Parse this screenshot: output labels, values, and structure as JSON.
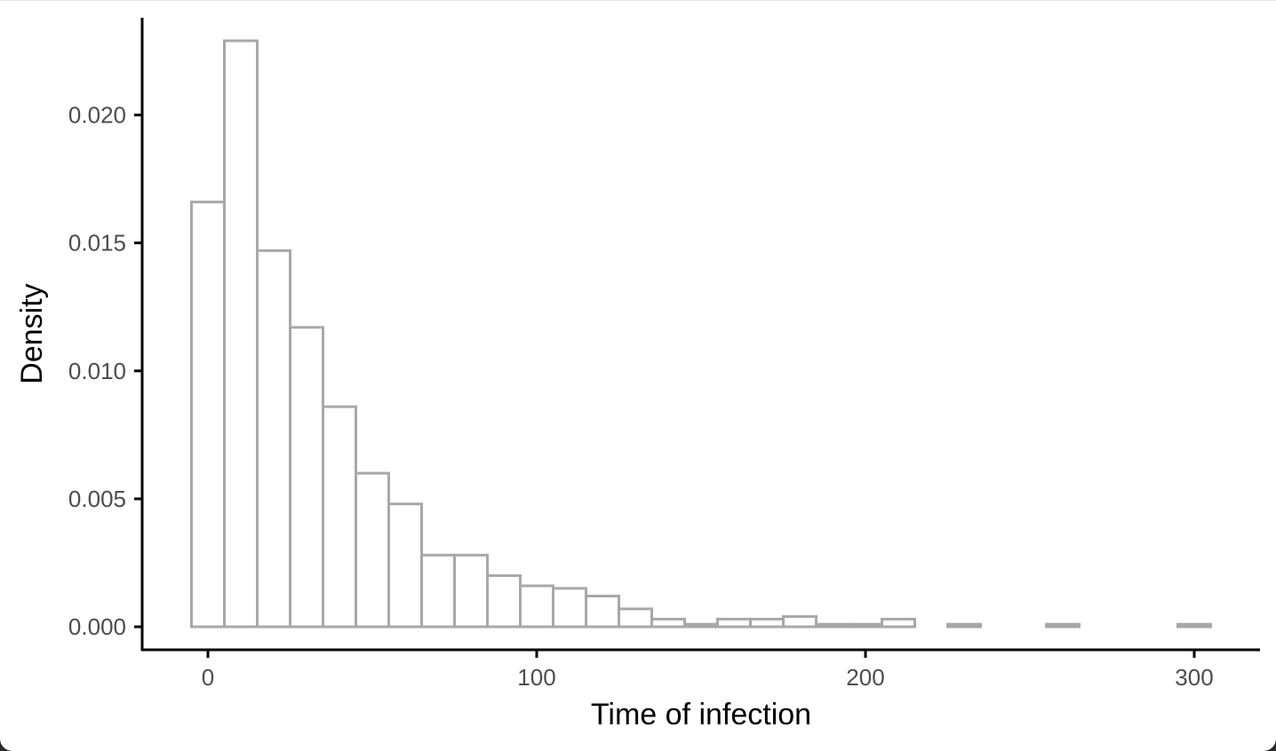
{
  "chart_data": {
    "type": "bar",
    "subtype": "histogram",
    "title": "",
    "xlabel": "Time of infection",
    "ylabel": "Density",
    "xlim": [
      -20,
      320
    ],
    "ylim": [
      -0.0009,
      0.0238
    ],
    "x_ticks": [
      0,
      100,
      200,
      300
    ],
    "x_tick_labels": [
      "0",
      "100",
      "200",
      "300"
    ],
    "y_ticks": [
      0.0,
      0.005,
      0.01,
      0.015,
      0.02
    ],
    "y_tick_labels": [
      "0.000",
      "0.005",
      "0.010",
      "0.015",
      "0.020"
    ],
    "bin_width": 10,
    "bin_centers": [
      0,
      10,
      20,
      30,
      40,
      50,
      60,
      70,
      80,
      90,
      100,
      110,
      120,
      130,
      140,
      150,
      160,
      170,
      180,
      190,
      200,
      210,
      220,
      230,
      240,
      250,
      260,
      270,
      280,
      290,
      300
    ],
    "values": [
      0.0166,
      0.0229,
      0.0147,
      0.0117,
      0.0086,
      0.006,
      0.0048,
      0.0028,
      0.0028,
      0.002,
      0.0016,
      0.0015,
      0.0012,
      0.0007,
      0.0003,
      0.0001,
      0.0003,
      0.0003,
      0.0004,
      0.0001,
      0.0001,
      0.0003,
      0.0,
      0.0001,
      0.0,
      0.0,
      0.0001,
      0.0,
      0.0,
      0.0,
      0.0001
    ],
    "grid": false,
    "legend": "none",
    "bar_fill": "#ffffff",
    "bar_outline": "#a8a8a8",
    "axis_color": "#000000",
    "tick_label_color": "#4d4d4d"
  }
}
